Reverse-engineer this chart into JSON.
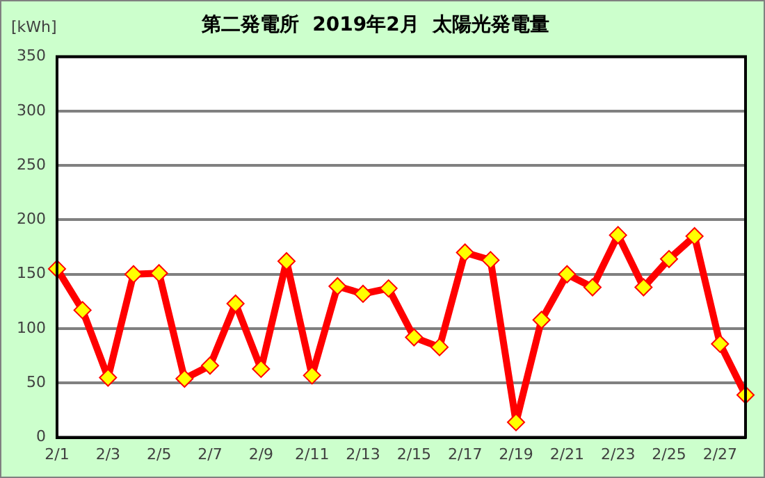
{
  "chart_data": {
    "type": "line",
    "title": "第二発電所  2019年2月  太陽光発電量",
    "ylabel": "[kWh]",
    "categories": [
      "2/1",
      null,
      "2/3",
      null,
      "2/5",
      null,
      "2/7",
      null,
      "2/9",
      null,
      "2/11",
      null,
      "2/13",
      null,
      "2/15",
      null,
      "2/17",
      null,
      "2/19",
      null,
      "2/21",
      null,
      "2/23",
      null,
      "2/25",
      null,
      "2/27",
      null
    ],
    "series": [
      {
        "color": "#ff0000",
        "values": [
          155,
          117,
          55,
          150,
          151,
          54,
          66,
          123,
          63,
          162,
          57,
          139,
          132,
          137,
          92,
          83,
          170,
          163,
          14,
          108,
          150,
          138,
          186,
          138,
          164,
          185,
          86,
          39
        ]
      }
    ],
    "ylim": [
      0,
      350
    ],
    "yticks": [
      0,
      50,
      100,
      150,
      200,
      250,
      300,
      350
    ],
    "grid": "y",
    "marker": "diamond",
    "line_style": "solid",
    "legend": false
  }
}
